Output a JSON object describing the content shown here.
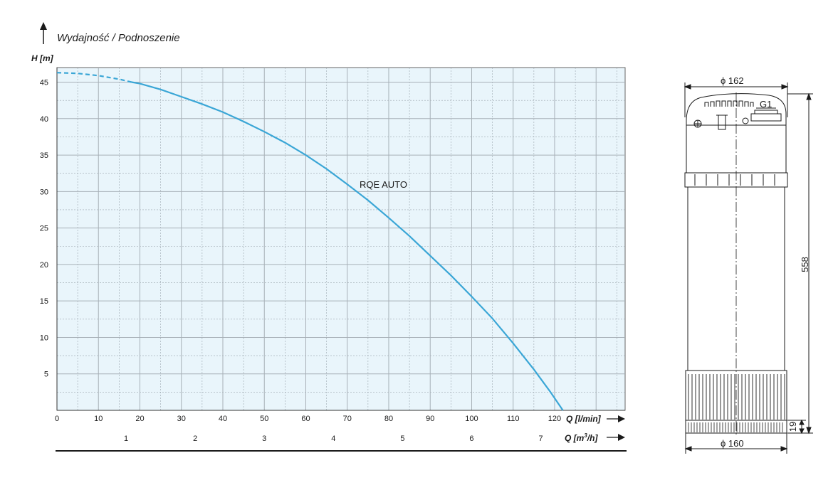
{
  "chart_data": {
    "type": "line",
    "title": "Wydajność / Podnoszenie",
    "ylabel": "H [m]",
    "xlabel": "Q [l/min]",
    "x2label_prefix": "Q [m",
    "x2label_sup": "3",
    "x2label_suffix": "/h]",
    "xlim": [
      0,
      137
    ],
    "ylim": [
      0,
      47
    ],
    "x_ticks": [
      0,
      10,
      20,
      30,
      40,
      50,
      60,
      70,
      80,
      90,
      100,
      110,
      120
    ],
    "y_ticks": [
      5,
      10,
      15,
      20,
      25,
      30,
      35,
      40,
      45
    ],
    "x2_ticks": [
      1,
      2,
      3,
      4,
      5,
      6,
      7
    ],
    "grid": true,
    "series": [
      {
        "name": "RQE AUTO",
        "color": "#3aa6d6",
        "dashed_until_x": 18,
        "x": [
          0,
          5,
          10,
          15,
          18,
          20,
          25,
          30,
          35,
          40,
          45,
          50,
          55,
          60,
          65,
          70,
          75,
          80,
          85,
          90,
          95,
          100,
          105,
          110,
          115,
          119,
          122
        ],
        "y": [
          46.3,
          46.2,
          45.9,
          45.4,
          45.0,
          44.8,
          44.0,
          43.0,
          42.0,
          40.9,
          39.6,
          38.2,
          36.7,
          35.0,
          33.1,
          31.0,
          28.8,
          26.4,
          23.9,
          21.2,
          18.5,
          15.6,
          12.6,
          9.2,
          5.6,
          2.5,
          0
        ]
      }
    ]
  },
  "pump_drawing": {
    "top_diameter": "ϕ 162",
    "bottom_diameter": "ϕ 160",
    "height": "558",
    "base_height": "19",
    "outlet": "G1",
    "line_color": "#1a1a1a"
  }
}
